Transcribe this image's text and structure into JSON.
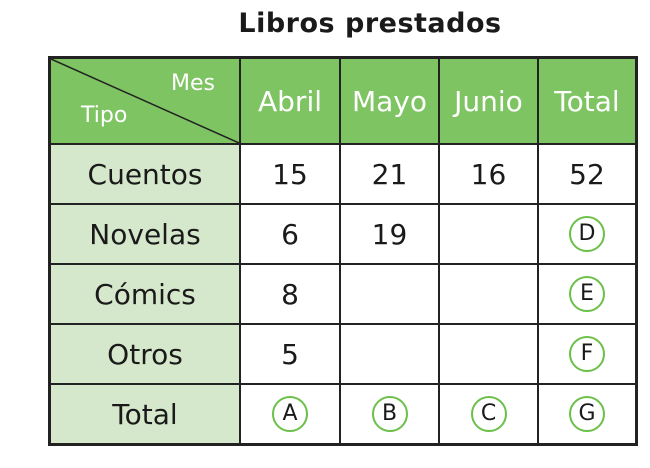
{
  "title": "Libros prestados",
  "header": {
    "row_label": "Tipo",
    "col_label": "Mes",
    "columns": [
      "Abril",
      "Mayo",
      "Junio",
      "Total"
    ]
  },
  "rows": [
    {
      "label": "Cuentos",
      "values": [
        "15",
        "21",
        "16",
        "52"
      ],
      "circled": [
        false,
        false,
        false,
        false
      ]
    },
    {
      "label": "Novelas",
      "values": [
        "6",
        "19",
        "",
        "D"
      ],
      "circled": [
        false,
        false,
        false,
        true
      ]
    },
    {
      "label": "Cómics",
      "values": [
        "8",
        "",
        "",
        "E"
      ],
      "circled": [
        false,
        false,
        false,
        true
      ]
    },
    {
      "label": "Otros",
      "values": [
        "5",
        "",
        "",
        "F"
      ],
      "circled": [
        false,
        false,
        false,
        true
      ]
    },
    {
      "label": "Total",
      "values": [
        "A",
        "B",
        "C",
        "G"
      ],
      "circled": [
        true,
        true,
        true,
        true
      ]
    }
  ],
  "colors": {
    "header": "#7ec462",
    "row_header": "#d6e8cc",
    "circle": "#6cc04a"
  }
}
